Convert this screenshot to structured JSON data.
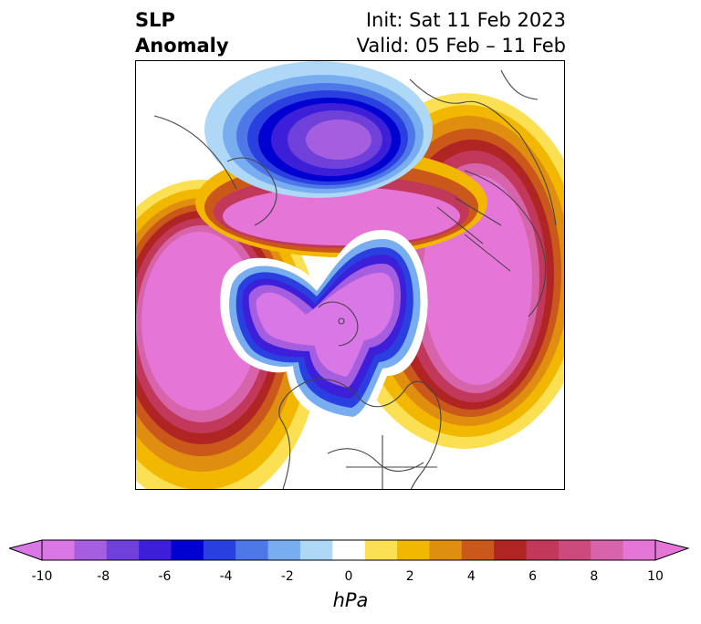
{
  "title": {
    "left_line1": "SLP",
    "left_line2": "Anomaly",
    "right_line1": "Init: Sat 11 Feb 2023",
    "right_line2": "Valid: 05 Feb – 11 Feb"
  },
  "map": {
    "projection": "north-polar-stereographic",
    "variable": "sea level pressure anomaly",
    "features": [
      {
        "name": "positive-anomaly-north-pacific",
        "value_hpa": 10
      },
      {
        "name": "positive-anomaly-north-atlantic",
        "value_hpa": 10
      },
      {
        "name": "positive-anomaly-eurasia",
        "value_hpa": 10
      },
      {
        "name": "negative-anomaly-siberia",
        "value_hpa": -10
      },
      {
        "name": "negative-anomaly-arctic-canada",
        "value_hpa": -10
      }
    ]
  },
  "colorbar": {
    "units": "hPa",
    "ticks": [
      "-10",
      "-8",
      "-6",
      "-4",
      "-2",
      "0",
      "2",
      "4",
      "6",
      "8",
      "10"
    ],
    "levels": [
      -10,
      -9,
      -8,
      -7,
      -6,
      -5,
      -4,
      -3,
      -2,
      -1,
      1,
      2,
      3,
      4,
      5,
      6,
      7,
      8,
      9,
      10
    ],
    "colors": [
      "#d977e6",
      "#a65ee0",
      "#7040da",
      "#3e1fd9",
      "#0000d0",
      "#2a3fe0",
      "#4e78e8",
      "#78aef0",
      "#aed8f5",
      "#ffffff",
      "#fbe053",
      "#f2b700",
      "#df8e10",
      "#c9581a",
      "#b02424",
      "#c2385a",
      "#cc4a7c",
      "#d764ab",
      "#e575d6"
    ],
    "extend_min_color": "#d977e6",
    "extend_max_color": "#e575d6"
  }
}
